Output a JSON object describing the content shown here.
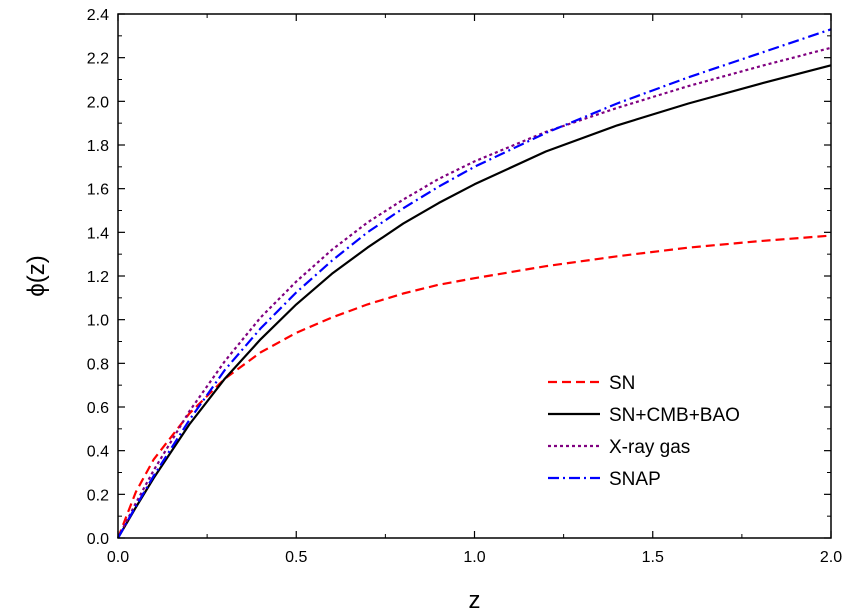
{
  "chart_data": {
    "type": "line",
    "title": "",
    "xlabel": "z",
    "ylabel": "ϕ(z)",
    "xlim": [
      0,
      2.0
    ],
    "ylim": [
      0,
      2.4
    ],
    "xticks": [
      "0.0",
      "0.5",
      "1.0",
      "1.5",
      "2.0"
    ],
    "yticks": [
      "0.0",
      "0.2",
      "0.4",
      "0.6",
      "0.8",
      "1.0",
      "1.2",
      "1.4",
      "1.6",
      "1.8",
      "2.0",
      "2.2",
      "2.4"
    ],
    "grid": false,
    "legend_position": "lower-right",
    "series": [
      {
        "name": "SN",
        "color": "#ff0000",
        "dash": "dashed",
        "x": [
          0,
          0.05,
          0.1,
          0.2,
          0.3,
          0.4,
          0.5,
          0.6,
          0.7,
          0.8,
          0.9,
          1.0,
          1.2,
          1.4,
          1.6,
          1.8,
          2.0
        ],
        "y": [
          0,
          0.21,
          0.36,
          0.57,
          0.73,
          0.85,
          0.94,
          1.01,
          1.07,
          1.12,
          1.16,
          1.19,
          1.245,
          1.29,
          1.33,
          1.36,
          1.385
        ]
      },
      {
        "name": "SN+CMB+BAO",
        "color": "#000000",
        "dash": "solid",
        "x": [
          0,
          0.05,
          0.1,
          0.2,
          0.3,
          0.4,
          0.5,
          0.6,
          0.7,
          0.8,
          0.9,
          1.0,
          1.2,
          1.4,
          1.6,
          1.8,
          2.0
        ],
        "y": [
          0,
          0.14,
          0.275,
          0.52,
          0.73,
          0.91,
          1.07,
          1.21,
          1.33,
          1.44,
          1.535,
          1.62,
          1.77,
          1.89,
          1.99,
          2.08,
          2.165
        ]
      },
      {
        "name": "X-ray gas",
        "color": "#800080",
        "dash": "dotted",
        "x": [
          0,
          0.05,
          0.1,
          0.2,
          0.3,
          0.4,
          0.5,
          0.6,
          0.7,
          0.8,
          0.9,
          1.0,
          1.2,
          1.4,
          1.6,
          1.8,
          2.0
        ],
        "y": [
          0,
          0.16,
          0.31,
          0.58,
          0.81,
          1.01,
          1.175,
          1.32,
          1.445,
          1.55,
          1.645,
          1.725,
          1.86,
          1.97,
          2.07,
          2.16,
          2.245
        ]
      },
      {
        "name": "SNAP",
        "color": "#0000ff",
        "dash": "dashdot",
        "x": [
          0,
          0.05,
          0.1,
          0.2,
          0.3,
          0.4,
          0.5,
          0.6,
          0.7,
          0.8,
          0.9,
          1.0,
          1.2,
          1.4,
          1.6,
          1.8,
          2.0
        ],
        "y": [
          0,
          0.145,
          0.285,
          0.54,
          0.77,
          0.96,
          1.125,
          1.27,
          1.4,
          1.51,
          1.61,
          1.7,
          1.855,
          1.99,
          2.11,
          2.22,
          2.33
        ]
      }
    ]
  }
}
